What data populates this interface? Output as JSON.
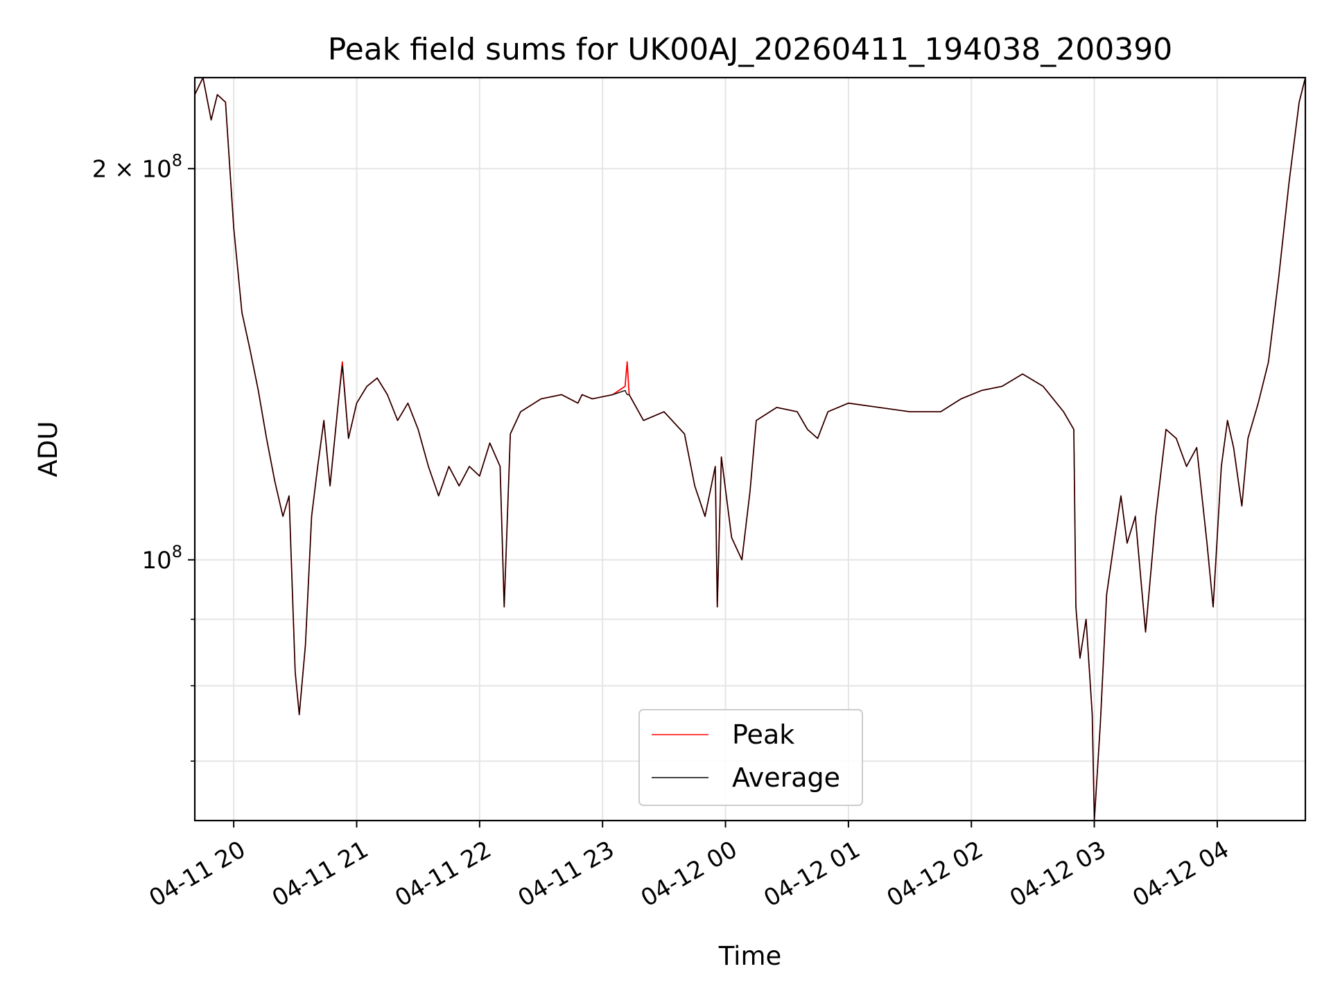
{
  "chart_data": {
    "type": "line",
    "title": "Peak field sums for UK00AJ_20260411_194038_200390",
    "xlabel": "Time",
    "ylabel": "ADU",
    "yscale": "log",
    "xlim": [
      "2026-04-11 19:41",
      "2026-04-12 04:43"
    ],
    "ylim": [
      63000000,
      235000000
    ],
    "x_ticks": [
      "04-11 20",
      "04-11 21",
      "04-11 22",
      "04-11 23",
      "04-12 00",
      "04-12 01",
      "04-12 02",
      "04-12 03",
      "04-12 04"
    ],
    "y_ticks": [
      {
        "value": 100000000,
        "base": "10",
        "exp": "8",
        "prefix": ""
      },
      {
        "value": 200000000,
        "base": "10",
        "exp": "8",
        "prefix": "2 × "
      }
    ],
    "y_minor_ticks": [
      70000000,
      80000000,
      90000000
    ],
    "grid": true,
    "legend": {
      "position": "lower center",
      "entries": [
        "Peak",
        "Average"
      ]
    },
    "series": [
      {
        "name": "Peak",
        "color": "#ff0000",
        "points": [
          [
            "2026-04-11 19:41",
            228000000
          ],
          [
            "2026-04-11 19:45",
            235000000
          ],
          [
            "2026-04-11 19:49",
            218000000
          ],
          [
            "2026-04-11 19:52",
            228000000
          ],
          [
            "2026-04-11 19:56",
            225000000
          ],
          [
            "2026-04-11 20:00",
            180000000
          ],
          [
            "2026-04-11 20:04",
            155000000
          ],
          [
            "2026-04-11 20:08",
            145000000
          ],
          [
            "2026-04-11 20:12",
            135000000
          ],
          [
            "2026-04-11 20:16",
            124000000
          ],
          [
            "2026-04-11 20:20",
            115000000
          ],
          [
            "2026-04-11 20:24",
            108000000
          ],
          [
            "2026-04-11 20:27",
            112000000
          ],
          [
            "2026-04-11 20:30",
            82000000
          ],
          [
            "2026-04-11 20:32",
            76000000
          ],
          [
            "2026-04-11 20:35",
            86000000
          ],
          [
            "2026-04-11 20:38",
            108000000
          ],
          [
            "2026-04-11 20:41",
            118000000
          ],
          [
            "2026-04-11 20:44",
            128000000
          ],
          [
            "2026-04-11 20:47",
            114000000
          ],
          [
            "2026-04-11 20:51",
            132000000
          ],
          [
            "2026-04-11 20:53",
            142000000
          ],
          [
            "2026-04-11 20:56",
            124000000
          ],
          [
            "2026-04-11 21:00",
            132000000
          ],
          [
            "2026-04-11 21:05",
            136000000
          ],
          [
            "2026-04-11 21:10",
            138000000
          ],
          [
            "2026-04-11 21:15",
            134000000
          ],
          [
            "2026-04-11 21:20",
            128000000
          ],
          [
            "2026-04-11 21:25",
            132000000
          ],
          [
            "2026-04-11 21:30",
            126000000
          ],
          [
            "2026-04-11 21:35",
            118000000
          ],
          [
            "2026-04-11 21:40",
            112000000
          ],
          [
            "2026-04-11 21:45",
            118000000
          ],
          [
            "2026-04-11 21:50",
            114000000
          ],
          [
            "2026-04-11 21:55",
            118000000
          ],
          [
            "2026-04-11 22:00",
            116000000
          ],
          [
            "2026-04-11 22:05",
            123000000
          ],
          [
            "2026-04-11 22:10",
            118000000
          ],
          [
            "2026-04-11 22:12",
            92000000
          ],
          [
            "2026-04-11 22:15",
            125000000
          ],
          [
            "2026-04-11 22:20",
            130000000
          ],
          [
            "2026-04-11 22:30",
            133000000
          ],
          [
            "2026-04-11 22:40",
            134000000
          ],
          [
            "2026-04-11 22:48",
            132000000
          ],
          [
            "2026-04-11 22:50",
            134000000
          ],
          [
            "2026-04-11 22:55",
            133000000
          ],
          [
            "2026-04-11 23:05",
            134000000
          ],
          [
            "2026-04-11 23:11",
            136000000
          ],
          [
            "2026-04-11 23:12",
            142000000
          ],
          [
            "2026-04-11 23:13",
            134000000
          ],
          [
            "2026-04-11 23:20",
            128000000
          ],
          [
            "2026-04-11 23:30",
            130000000
          ],
          [
            "2026-04-11 23:40",
            125000000
          ],
          [
            "2026-04-11 23:45",
            114000000
          ],
          [
            "2026-04-11 23:50",
            108000000
          ],
          [
            "2026-04-11 23:55",
            118000000
          ],
          [
            "2026-04-11 23:56",
            92000000
          ],
          [
            "2026-04-11 23:58",
            120000000
          ],
          [
            "2026-04-12 00:03",
            104000000
          ],
          [
            "2026-04-12 00:08",
            100000000
          ],
          [
            "2026-04-12 00:12",
            113000000
          ],
          [
            "2026-04-12 00:15",
            128000000
          ],
          [
            "2026-04-12 00:25",
            131000000
          ],
          [
            "2026-04-12 00:35",
            130000000
          ],
          [
            "2026-04-12 00:40",
            126000000
          ],
          [
            "2026-04-12 00:45",
            124000000
          ],
          [
            "2026-04-12 00:50",
            130000000
          ],
          [
            "2026-04-12 01:00",
            132000000
          ],
          [
            "2026-04-12 01:15",
            131000000
          ],
          [
            "2026-04-12 01:30",
            130000000
          ],
          [
            "2026-04-12 01:45",
            130000000
          ],
          [
            "2026-04-12 01:55",
            133000000
          ],
          [
            "2026-04-12 02:05",
            135000000
          ],
          [
            "2026-04-12 02:15",
            136000000
          ],
          [
            "2026-04-12 02:25",
            139000000
          ],
          [
            "2026-04-12 02:35",
            136000000
          ],
          [
            "2026-04-12 02:45",
            130000000
          ],
          [
            "2026-04-12 02:50",
            126000000
          ],
          [
            "2026-04-12 02:51",
            92000000
          ],
          [
            "2026-04-12 02:53",
            84000000
          ],
          [
            "2026-04-12 02:56",
            90000000
          ],
          [
            "2026-04-12 02:59",
            76000000
          ],
          [
            "2026-04-12 03:00",
            63000000
          ],
          [
            "2026-04-12 03:03",
            75000000
          ],
          [
            "2026-04-12 03:06",
            94000000
          ],
          [
            "2026-04-12 03:10",
            104000000
          ],
          [
            "2026-04-12 03:13",
            112000000
          ],
          [
            "2026-04-12 03:16",
            103000000
          ],
          [
            "2026-04-12 03:20",
            108000000
          ],
          [
            "2026-04-12 03:25",
            88000000
          ],
          [
            "2026-04-12 03:30",
            108000000
          ],
          [
            "2026-04-12 03:35",
            126000000
          ],
          [
            "2026-04-12 03:40",
            124000000
          ],
          [
            "2026-04-12 03:45",
            118000000
          ],
          [
            "2026-04-12 03:50",
            122000000
          ],
          [
            "2026-04-12 03:55",
            103000000
          ],
          [
            "2026-04-12 03:58",
            92000000
          ],
          [
            "2026-04-12 04:02",
            118000000
          ],
          [
            "2026-04-12 04:05",
            128000000
          ],
          [
            "2026-04-12 04:08",
            122000000
          ],
          [
            "2026-04-12 04:12",
            110000000
          ],
          [
            "2026-04-12 04:15",
            124000000
          ],
          [
            "2026-04-12 04:20",
            132000000
          ],
          [
            "2026-04-12 04:25",
            142000000
          ],
          [
            "2026-04-12 04:30",
            165000000
          ],
          [
            "2026-04-12 04:35",
            195000000
          ],
          [
            "2026-04-12 04:40",
            225000000
          ],
          [
            "2026-04-12 04:43",
            235000000
          ]
        ]
      },
      {
        "name": "Average",
        "color": "#000000",
        "points": [
          [
            "2026-04-11 19:41",
            228000000
          ],
          [
            "2026-04-11 19:45",
            235000000
          ],
          [
            "2026-04-11 19:49",
            218000000
          ],
          [
            "2026-04-11 19:52",
            228000000
          ],
          [
            "2026-04-11 19:56",
            225000000
          ],
          [
            "2026-04-11 20:00",
            180000000
          ],
          [
            "2026-04-11 20:04",
            155000000
          ],
          [
            "2026-04-11 20:08",
            145000000
          ],
          [
            "2026-04-11 20:12",
            135000000
          ],
          [
            "2026-04-11 20:16",
            124000000
          ],
          [
            "2026-04-11 20:20",
            115000000
          ],
          [
            "2026-04-11 20:24",
            108000000
          ],
          [
            "2026-04-11 20:27",
            112000000
          ],
          [
            "2026-04-11 20:30",
            82000000
          ],
          [
            "2026-04-11 20:32",
            76000000
          ],
          [
            "2026-04-11 20:35",
            86000000
          ],
          [
            "2026-04-11 20:38",
            108000000
          ],
          [
            "2026-04-11 20:41",
            118000000
          ],
          [
            "2026-04-11 20:44",
            128000000
          ],
          [
            "2026-04-11 20:47",
            114000000
          ],
          [
            "2026-04-11 20:51",
            132000000
          ],
          [
            "2026-04-11 20:53",
            141000000
          ],
          [
            "2026-04-11 20:56",
            124000000
          ],
          [
            "2026-04-11 21:00",
            132000000
          ],
          [
            "2026-04-11 21:05",
            136000000
          ],
          [
            "2026-04-11 21:10",
            138000000
          ],
          [
            "2026-04-11 21:15",
            134000000
          ],
          [
            "2026-04-11 21:20",
            128000000
          ],
          [
            "2026-04-11 21:25",
            132000000
          ],
          [
            "2026-04-11 21:30",
            126000000
          ],
          [
            "2026-04-11 21:35",
            118000000
          ],
          [
            "2026-04-11 21:40",
            112000000
          ],
          [
            "2026-04-11 21:45",
            118000000
          ],
          [
            "2026-04-11 21:50",
            114000000
          ],
          [
            "2026-04-11 21:55",
            118000000
          ],
          [
            "2026-04-11 22:00",
            116000000
          ],
          [
            "2026-04-11 22:05",
            123000000
          ],
          [
            "2026-04-11 22:10",
            118000000
          ],
          [
            "2026-04-11 22:12",
            92000000
          ],
          [
            "2026-04-11 22:15",
            125000000
          ],
          [
            "2026-04-11 22:20",
            130000000
          ],
          [
            "2026-04-11 22:30",
            133000000
          ],
          [
            "2026-04-11 22:40",
            134000000
          ],
          [
            "2026-04-11 22:48",
            132000000
          ],
          [
            "2026-04-11 22:50",
            134000000
          ],
          [
            "2026-04-11 22:55",
            133000000
          ],
          [
            "2026-04-11 23:05",
            134000000
          ],
          [
            "2026-04-11 23:11",
            135000000
          ],
          [
            "2026-04-11 23:12",
            134000000
          ],
          [
            "2026-04-11 23:13",
            134000000
          ],
          [
            "2026-04-11 23:20",
            128000000
          ],
          [
            "2026-04-11 23:30",
            130000000
          ],
          [
            "2026-04-11 23:40",
            125000000
          ],
          [
            "2026-04-11 23:45",
            114000000
          ],
          [
            "2026-04-11 23:50",
            108000000
          ],
          [
            "2026-04-11 23:55",
            118000000
          ],
          [
            "2026-04-11 23:56",
            92000000
          ],
          [
            "2026-04-11 23:58",
            120000000
          ],
          [
            "2026-04-12 00:03",
            104000000
          ],
          [
            "2026-04-12 00:08",
            100000000
          ],
          [
            "2026-04-12 00:12",
            113000000
          ],
          [
            "2026-04-12 00:15",
            128000000
          ],
          [
            "2026-04-12 00:25",
            131000000
          ],
          [
            "2026-04-12 00:35",
            130000000
          ],
          [
            "2026-04-12 00:40",
            126000000
          ],
          [
            "2026-04-12 00:45",
            124000000
          ],
          [
            "2026-04-12 00:50",
            130000000
          ],
          [
            "2026-04-12 01:00",
            132000000
          ],
          [
            "2026-04-12 01:15",
            131000000
          ],
          [
            "2026-04-12 01:30",
            130000000
          ],
          [
            "2026-04-12 01:45",
            130000000
          ],
          [
            "2026-04-12 01:55",
            133000000
          ],
          [
            "2026-04-12 02:05",
            135000000
          ],
          [
            "2026-04-12 02:15",
            136000000
          ],
          [
            "2026-04-12 02:25",
            139000000
          ],
          [
            "2026-04-12 02:35",
            136000000
          ],
          [
            "2026-04-12 02:45",
            130000000
          ],
          [
            "2026-04-12 02:50",
            126000000
          ],
          [
            "2026-04-12 02:51",
            92000000
          ],
          [
            "2026-04-12 02:53",
            84000000
          ],
          [
            "2026-04-12 02:56",
            90000000
          ],
          [
            "2026-04-12 02:59",
            76000000
          ],
          [
            "2026-04-12 03:00",
            63000000
          ],
          [
            "2026-04-12 03:03",
            75000000
          ],
          [
            "2026-04-12 03:06",
            94000000
          ],
          [
            "2026-04-12 03:10",
            104000000
          ],
          [
            "2026-04-12 03:13",
            112000000
          ],
          [
            "2026-04-12 03:16",
            103000000
          ],
          [
            "2026-04-12 03:20",
            108000000
          ],
          [
            "2026-04-12 03:25",
            88000000
          ],
          [
            "2026-04-12 03:30",
            108000000
          ],
          [
            "2026-04-12 03:35",
            126000000
          ],
          [
            "2026-04-12 03:40",
            124000000
          ],
          [
            "2026-04-12 03:45",
            118000000
          ],
          [
            "2026-04-12 03:50",
            122000000
          ],
          [
            "2026-04-12 03:55",
            103000000
          ],
          [
            "2026-04-12 03:58",
            92000000
          ],
          [
            "2026-04-12 04:02",
            118000000
          ],
          [
            "2026-04-12 04:05",
            128000000
          ],
          [
            "2026-04-12 04:08",
            122000000
          ],
          [
            "2026-04-12 04:12",
            110000000
          ],
          [
            "2026-04-12 04:15",
            124000000
          ],
          [
            "2026-04-12 04:20",
            132000000
          ],
          [
            "2026-04-12 04:25",
            142000000
          ],
          [
            "2026-04-12 04:30",
            165000000
          ],
          [
            "2026-04-12 04:35",
            195000000
          ],
          [
            "2026-04-12 04:40",
            225000000
          ],
          [
            "2026-04-12 04:43",
            235000000
          ]
        ]
      }
    ]
  }
}
